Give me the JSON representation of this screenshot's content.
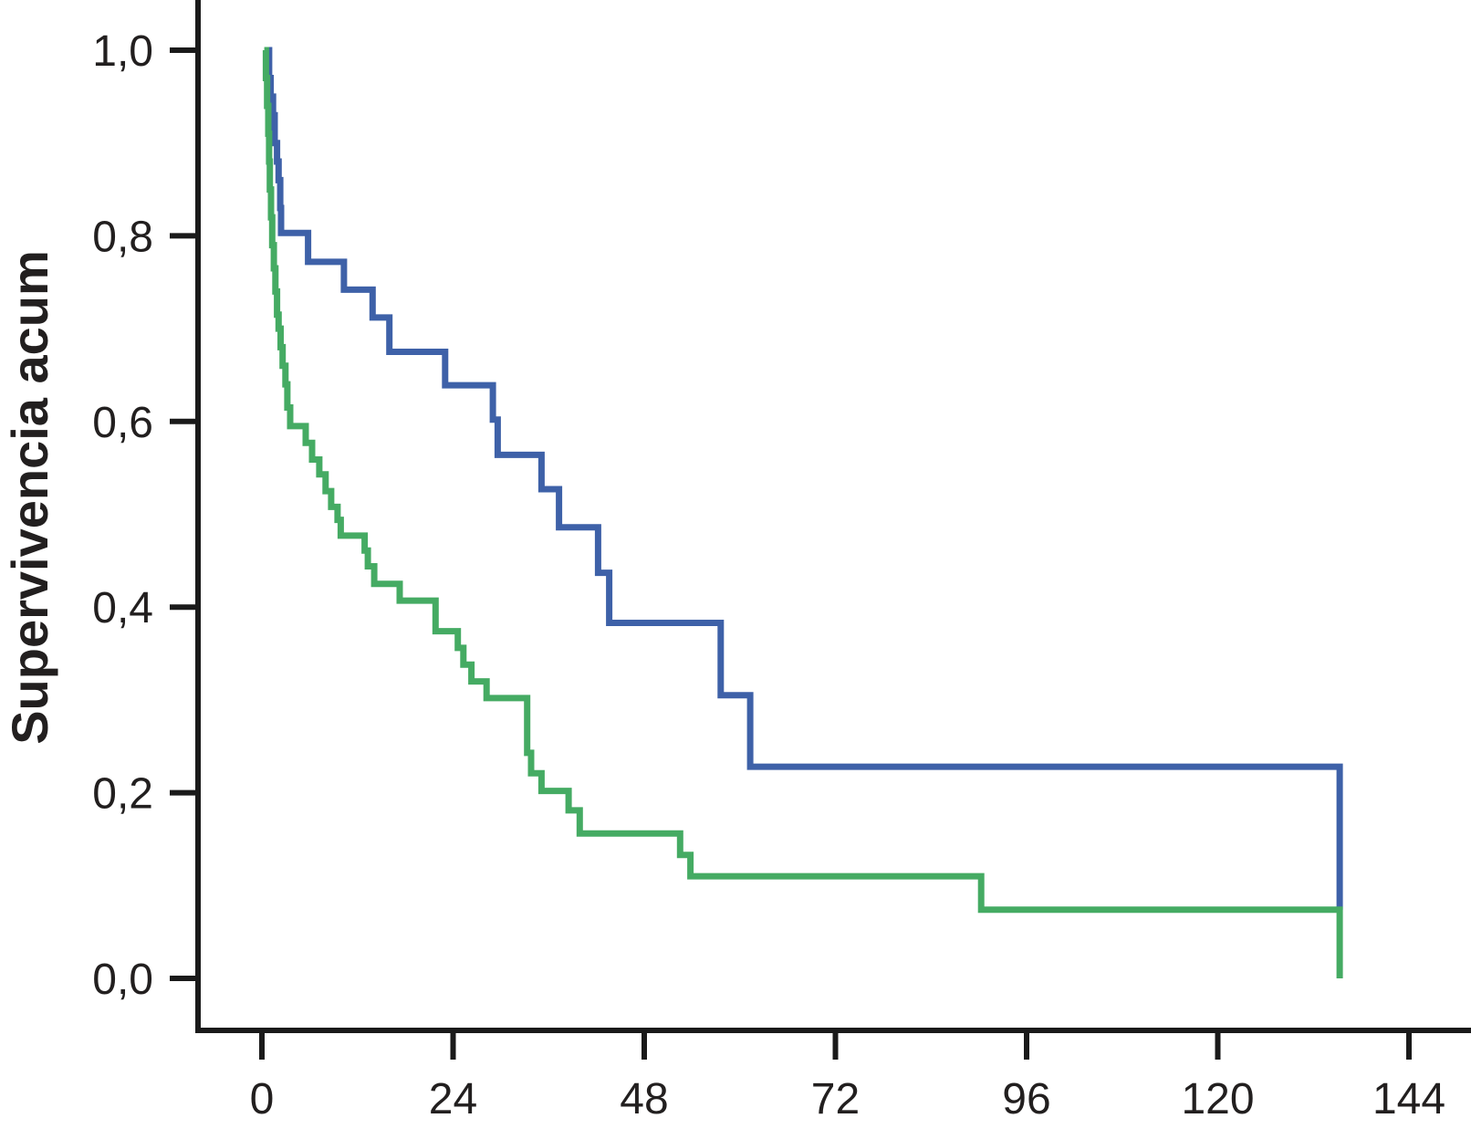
{
  "chart_data": {
    "type": "line",
    "subtype": "kaplan-meier-step",
    "title": "",
    "xlabel": "",
    "ylabel": "Supervivencia acum",
    "xlim": [
      0,
      144
    ],
    "ylim": [
      0.0,
      1.0
    ],
    "grid": false,
    "legend": "none",
    "x_ticks": [
      {
        "value": 0,
        "label": "0"
      },
      {
        "value": 24,
        "label": "24"
      },
      {
        "value": 48,
        "label": "48"
      },
      {
        "value": 72,
        "label": "72"
      },
      {
        "value": 96,
        "label": "96"
      },
      {
        "value": 120,
        "label": "120"
      },
      {
        "value": 144,
        "label": "144"
      }
    ],
    "y_ticks": [
      {
        "value": 1.0,
        "label": "1,0"
      },
      {
        "value": 0.8,
        "label": "0,8"
      },
      {
        "value": 0.6,
        "label": "0,6"
      },
      {
        "value": 0.4,
        "label": "0,4"
      },
      {
        "value": 0.2,
        "label": "0,2"
      },
      {
        "value": 0.0,
        "label": "0,0"
      }
    ],
    "series": [
      {
        "name": "curve-blue",
        "color": "#3E61A8",
        "points": [
          [
            0.7,
            1.0
          ],
          [
            0.9,
            0.97
          ],
          [
            1.1,
            0.95
          ],
          [
            1.4,
            0.93
          ],
          [
            1.6,
            0.9
          ],
          [
            1.9,
            0.88
          ],
          [
            2.1,
            0.86
          ],
          [
            2.3,
            0.83
          ],
          [
            2.4,
            0.803
          ],
          [
            5.8,
            0.772
          ],
          [
            10.3,
            0.742
          ],
          [
            13.9,
            0.712
          ],
          [
            16.0,
            0.675
          ],
          [
            23.0,
            0.639
          ],
          [
            29.0,
            0.602
          ],
          [
            29.6,
            0.564
          ],
          [
            35.1,
            0.527
          ],
          [
            37.3,
            0.486
          ],
          [
            42.2,
            0.437
          ],
          [
            43.6,
            0.383
          ],
          [
            57.6,
            0.305
          ],
          [
            61.3,
            0.228
          ],
          [
            135.3,
            0.074
          ]
        ]
      },
      {
        "name": "curve-green",
        "color": "#45AB63",
        "points": [
          [
            0.3,
            1.0
          ],
          [
            0.5,
            0.97
          ],
          [
            0.65,
            0.94
          ],
          [
            0.8,
            0.91
          ],
          [
            0.9,
            0.88
          ],
          [
            1.0,
            0.85
          ],
          [
            1.15,
            0.82
          ],
          [
            1.3,
            0.79
          ],
          [
            1.5,
            0.765
          ],
          [
            1.7,
            0.74
          ],
          [
            1.9,
            0.715
          ],
          [
            2.1,
            0.7
          ],
          [
            2.35,
            0.68
          ],
          [
            2.6,
            0.66
          ],
          [
            2.95,
            0.64
          ],
          [
            3.2,
            0.615
          ],
          [
            3.55,
            0.595
          ],
          [
            5.5,
            0.577
          ],
          [
            6.3,
            0.559
          ],
          [
            7.2,
            0.543
          ],
          [
            8.0,
            0.525
          ],
          [
            8.7,
            0.508
          ],
          [
            9.5,
            0.494
          ],
          [
            9.9,
            0.477
          ],
          [
            12.9,
            0.461
          ],
          [
            13.3,
            0.444
          ],
          [
            14.1,
            0.425
          ],
          [
            17.3,
            0.407
          ],
          [
            21.8,
            0.374
          ],
          [
            24.6,
            0.356
          ],
          [
            25.3,
            0.338
          ],
          [
            26.3,
            0.32
          ],
          [
            28.2,
            0.302
          ],
          [
            33.3,
            0.243
          ],
          [
            33.8,
            0.221
          ],
          [
            35.1,
            0.202
          ],
          [
            38.5,
            0.181
          ],
          [
            39.9,
            0.156
          ],
          [
            52.5,
            0.133
          ],
          [
            53.8,
            0.11
          ],
          [
            90.3,
            0.074
          ],
          [
            135.3,
            0.0
          ]
        ]
      }
    ],
    "axis_color": "#1a1a1a"
  }
}
